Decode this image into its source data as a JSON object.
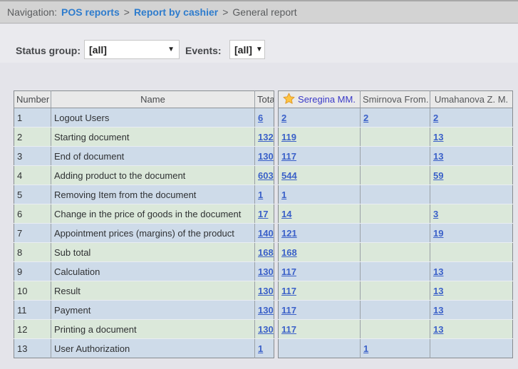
{
  "nav": {
    "label": "Navigation:",
    "separator": ">",
    "items": [
      {
        "label": "POS reports"
      },
      {
        "label": "Report by cashier"
      },
      {
        "label": "General report"
      }
    ]
  },
  "filters": {
    "status_group_label": "Status group:",
    "status_group_value": "[all]",
    "events_label": "Events:",
    "events_value": "[all]",
    "dropdown_arrow": "▼"
  },
  "table": {
    "headers": {
      "number": "Number",
      "name": "Name",
      "total": "Total"
    },
    "cashiers": [
      {
        "label": "Seregina MM.",
        "starred": true
      },
      {
        "label": "Smirnova From.",
        "starred": false
      },
      {
        "label": "Umahanova Z. M.",
        "starred": false
      }
    ],
    "rows": [
      {
        "number": "1",
        "name": "Logout Users",
        "total": "6",
        "values": [
          "2",
          "2",
          "2"
        ]
      },
      {
        "number": "2",
        "name": "Starting document",
        "total": "132",
        "values": [
          "119",
          "",
          "13"
        ]
      },
      {
        "number": "3",
        "name": "End of document",
        "total": "130",
        "values": [
          "117",
          "",
          "13"
        ]
      },
      {
        "number": "4",
        "name": "Adding product to the document",
        "total": "603",
        "values": [
          "544",
          "",
          "59"
        ]
      },
      {
        "number": "5",
        "name": "Removing Item from the document",
        "total": "1",
        "values": [
          "1",
          "",
          ""
        ]
      },
      {
        "number": "6",
        "name": "Change in the price of goods in the document",
        "total": "17",
        "values": [
          "14",
          "",
          "3"
        ]
      },
      {
        "number": "7",
        "name": "Appointment prices (margins) of the product",
        "total": "140",
        "values": [
          "121",
          "",
          "19"
        ]
      },
      {
        "number": "8",
        "name": "Sub total",
        "total": "168",
        "values": [
          "168",
          "",
          ""
        ]
      },
      {
        "number": "9",
        "name": "Calculation",
        "total": "130",
        "values": [
          "117",
          "",
          "13"
        ]
      },
      {
        "number": "10",
        "name": "Result",
        "total": "130",
        "values": [
          "117",
          "",
          "13"
        ]
      },
      {
        "number": "11",
        "name": "Payment",
        "total": "130",
        "values": [
          "117",
          "",
          "13"
        ]
      },
      {
        "number": "12",
        "name": "Printing a document",
        "total": "130",
        "values": [
          "117",
          "",
          "13"
        ]
      },
      {
        "number": "13",
        "name": "User Authorization",
        "total": "1",
        "values": [
          "",
          "1",
          ""
        ]
      }
    ]
  },
  "colors": {
    "nav_link": "#2e7ccd",
    "table_link": "#3a60c8",
    "starred_cashier": "#3a3ac8",
    "row_odd": "#cedbe9",
    "row_even": "#dbe8da",
    "star_fill": "#fec441",
    "star_stroke": "#e09b2d"
  }
}
